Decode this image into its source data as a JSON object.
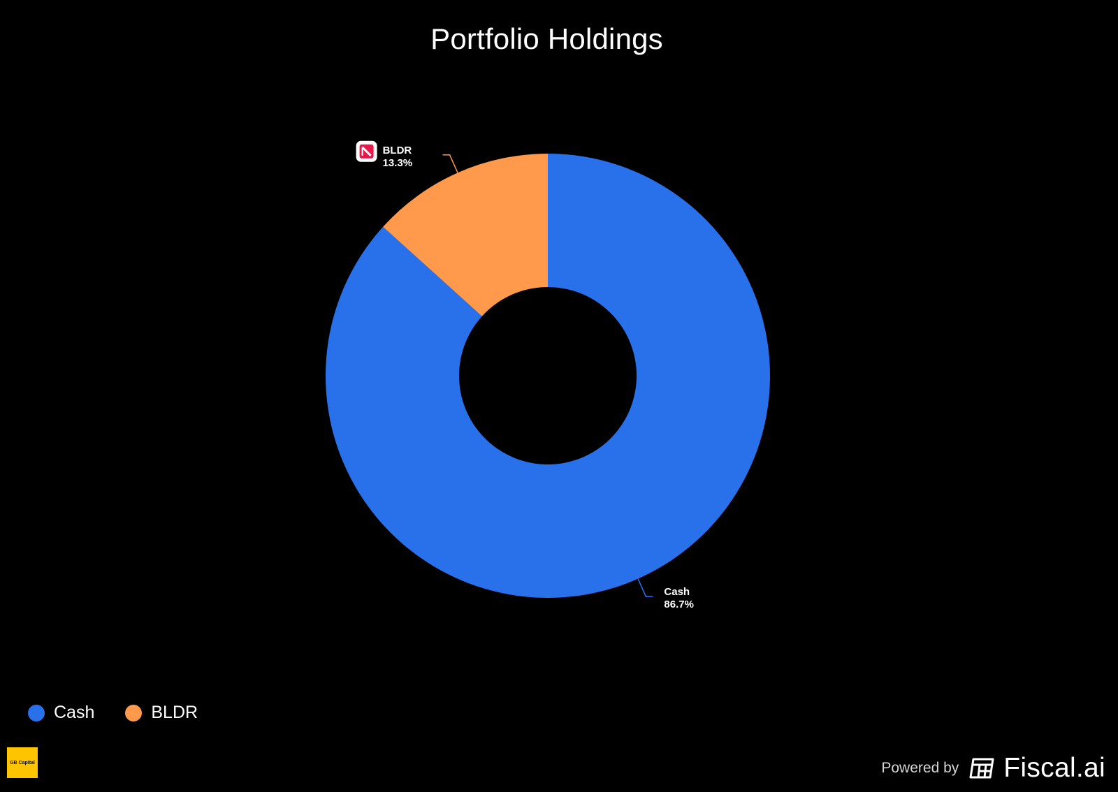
{
  "chart_data": {
    "type": "pie",
    "style": "donut",
    "title": "Portfolio Holdings",
    "slices": [
      {
        "name": "Cash",
        "value": 86.7,
        "label_value": "86.7%",
        "color": "#2971EB"
      },
      {
        "name": "BLDR",
        "value": 13.3,
        "label_value": "13.3%",
        "color": "#FF994C"
      }
    ],
    "legend": {
      "placement": "bottom-left",
      "entries": [
        "Cash",
        "BLDR"
      ]
    }
  },
  "bldr_icon": {
    "name": "bldr-company-icon",
    "bg": "#ffffff",
    "fg": "#e8184a"
  },
  "branding": {
    "logo_text": "GB Capital",
    "logo_color": "#ffc400",
    "powered_by": "Powered by",
    "provider": "Fiscal.ai",
    "provider_icon": "fiscal-ai-grid-icon"
  }
}
